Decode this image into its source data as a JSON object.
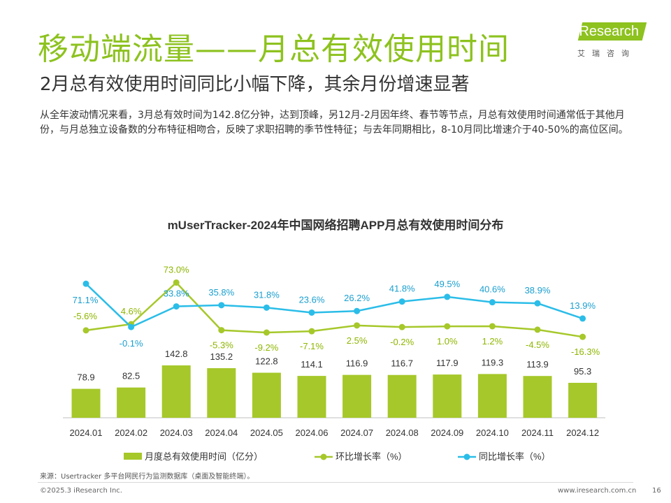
{
  "header": {
    "title": "移动端流量——月总有效使用时间",
    "subtitle": "2月总有效使用时间同比小幅下降，其余月份增速显著",
    "description": "从全年波动情况来看，3月总有效时间为142.8亿分钟，达到顶峰，另12月-2月因年终、春节等节点，月总有效使用时间通常低于其他月份，与月总独立设备数的分布特征相吻合，反映了求职招聘的季节性特征；与去年同期相比，8-10月同比增速介于40-50%的高位区间。"
  },
  "logo": {
    "text": "iResearch",
    "subtext": "艾瑞咨询"
  },
  "colors": {
    "accent": "#8dc21f",
    "bar": "#a6c82a",
    "mom_line": "#a6c82a",
    "yoy_line": "#2bbde8"
  },
  "chart_data": {
    "type": "bar",
    "title": "mUserTracker-2024年中国网络招聘APP月总有效使用时间分布",
    "categories": [
      "2024.01",
      "2024.02",
      "2024.03",
      "2024.04",
      "2024.05",
      "2024.06",
      "2024.07",
      "2024.08",
      "2024.09",
      "2024.10",
      "2024.11",
      "2024.12"
    ],
    "series": [
      {
        "name": "月度总有效使用时间（亿分）",
        "type": "bar",
        "values": [
          78.9,
          82.5,
          142.8,
          135.2,
          122.8,
          114.1,
          116.9,
          116.7,
          117.9,
          119.3,
          113.9,
          95.3
        ],
        "labels": [
          "78.9",
          "82.5",
          "142.8",
          "135.2",
          "122.8",
          "114.1",
          "116.9",
          "116.7",
          "117.9",
          "119.3",
          "113.9",
          "95.3"
        ]
      },
      {
        "name": "环比增长率（%）",
        "type": "line",
        "values": [
          -5.6,
          4.6,
          73.0,
          -5.3,
          -9.2,
          -7.1,
          2.5,
          -0.2,
          1.0,
          1.2,
          -4.5,
          -16.3
        ],
        "labels": [
          "-5.6%",
          "4.6%",
          "73.0%",
          "-5.3%",
          "-9.2%",
          "-7.1%",
          "2.5%",
          "-0.2%",
          "1.0%",
          "1.2%",
          "-4.5%",
          "-16.3%"
        ]
      },
      {
        "name": "同比增长率（%）",
        "type": "line",
        "values": [
          71.1,
          -0.1,
          33.8,
          35.8,
          31.8,
          23.6,
          26.2,
          41.8,
          49.5,
          40.6,
          38.9,
          13.9
        ],
        "labels": [
          "71.1%",
          "-0.1%",
          "33.8%",
          "35.8%",
          "31.8%",
          "23.6%",
          "26.2%",
          "41.8%",
          "49.5%",
          "40.6%",
          "38.9%",
          "13.9%"
        ]
      }
    ],
    "legend": "bottom"
  },
  "footer": {
    "source": "来源：Usertracker 多平台网民行为监测数据库（桌面及智能终端）。",
    "copyright": "©2025.3 iResearch Inc.",
    "site": "www.iresearch.com.cn",
    "page": "16"
  }
}
